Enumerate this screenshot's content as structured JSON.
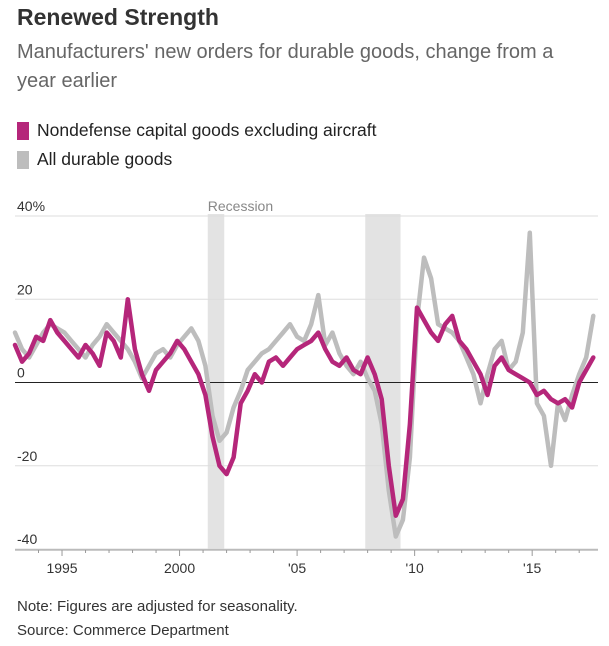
{
  "header": {
    "title": "Renewed Strength",
    "subtitle": "Manufacturers' new orders for durable goods, change from a year earlier"
  },
  "legend": [
    {
      "label": "Nondefense capital goods excluding aircraft",
      "color": "#b5267a"
    },
    {
      "label": "All durable goods",
      "color": "#bdbdbd"
    }
  ],
  "footer": {
    "note": "Note: Figures are adjusted for seasonality.",
    "source": "Source: Commerce Department"
  },
  "chart_data": {
    "type": "line",
    "title": "Renewed Strength",
    "xlim": [
      1993,
      2017.8
    ],
    "ylim": [
      -40,
      40
    ],
    "y_ticks": [
      -40,
      -20,
      0,
      20,
      40
    ],
    "y_tick_labels": [
      "-40",
      "-20",
      "0",
      "20",
      "40%"
    ],
    "x_ticks": [
      1995,
      2000,
      2005,
      2010,
      2015
    ],
    "x_tick_labels": [
      "1995",
      "2000",
      "'05",
      "'10",
      "'15"
    ],
    "grid": "horizontal",
    "recession_label": "Recession",
    "recessions": [
      [
        2001.2,
        2001.9
      ],
      [
        2007.9,
        2009.4
      ]
    ],
    "series": [
      {
        "name": "All durable goods",
        "color": "#bdbdbd",
        "x": [
          1993.0,
          1993.3,
          1993.6,
          1993.9,
          1994.2,
          1994.5,
          1994.8,
          1995.1,
          1995.4,
          1995.7,
          1996.0,
          1996.3,
          1996.6,
          1996.9,
          1997.2,
          1997.5,
          1997.8,
          1998.1,
          1998.4,
          1998.7,
          1999.0,
          1999.3,
          1999.6,
          1999.9,
          2000.2,
          2000.5,
          2000.8,
          2001.1,
          2001.4,
          2001.7,
          2002.0,
          2002.3,
          2002.6,
          2002.9,
          2003.2,
          2003.5,
          2003.8,
          2004.1,
          2004.4,
          2004.7,
          2005.0,
          2005.3,
          2005.6,
          2005.9,
          2006.2,
          2006.5,
          2006.8,
          2007.1,
          2007.4,
          2007.7,
          2008.0,
          2008.3,
          2008.6,
          2008.9,
          2009.2,
          2009.5,
          2009.8,
          2010.1,
          2010.4,
          2010.7,
          2011.0,
          2011.3,
          2011.6,
          2011.9,
          2012.2,
          2012.5,
          2012.8,
          2013.1,
          2013.4,
          2013.7,
          2014.0,
          2014.3,
          2014.6,
          2014.9,
          2015.2,
          2015.5,
          2015.8,
          2016.1,
          2016.4,
          2016.7,
          2017.0,
          2017.3,
          2017.6
        ],
        "y": [
          12,
          8,
          6,
          9,
          12,
          14,
          13,
          12,
          10,
          8,
          6,
          9,
          11,
          14,
          12,
          10,
          8,
          5,
          1,
          4,
          7,
          8,
          6,
          9,
          11,
          13,
          10,
          4,
          -8,
          -14,
          -12,
          -6,
          -2,
          3,
          5,
          7,
          8,
          10,
          12,
          14,
          11,
          10,
          14,
          21,
          9,
          12,
          7,
          4,
          2,
          5,
          1,
          -2,
          -10,
          -26,
          -37,
          -33,
          -18,
          15,
          30,
          25,
          14,
          13,
          12,
          10,
          6,
          2,
          -5,
          2,
          8,
          10,
          3,
          5,
          12,
          36,
          -5,
          -8,
          -20,
          -5,
          -9,
          -3,
          2,
          6,
          16
        ]
      },
      {
        "name": "Nondefense capital goods excluding aircraft",
        "color": "#b5267a",
        "x": [
          1993.0,
          1993.3,
          1993.6,
          1993.9,
          1994.2,
          1994.5,
          1994.8,
          1995.1,
          1995.4,
          1995.7,
          1996.0,
          1996.3,
          1996.6,
          1996.9,
          1997.2,
          1997.5,
          1997.8,
          1998.1,
          1998.4,
          1998.7,
          1999.0,
          1999.3,
          1999.6,
          1999.9,
          2000.2,
          2000.5,
          2000.8,
          2001.1,
          2001.4,
          2001.7,
          2002.0,
          2002.3,
          2002.6,
          2002.9,
          2003.2,
          2003.5,
          2003.8,
          2004.1,
          2004.4,
          2004.7,
          2005.0,
          2005.3,
          2005.6,
          2005.9,
          2006.2,
          2006.5,
          2006.8,
          2007.1,
          2007.4,
          2007.7,
          2008.0,
          2008.3,
          2008.6,
          2008.9,
          2009.2,
          2009.5,
          2009.8,
          2010.1,
          2010.4,
          2010.7,
          2011.0,
          2011.3,
          2011.6,
          2011.9,
          2012.2,
          2012.5,
          2012.8,
          2013.1,
          2013.4,
          2013.7,
          2014.0,
          2014.3,
          2014.6,
          2014.9,
          2015.2,
          2015.5,
          2015.8,
          2016.1,
          2016.4,
          2016.7,
          2017.0,
          2017.3,
          2017.6
        ],
        "y": [
          9,
          5,
          7,
          11,
          10,
          15,
          12,
          10,
          8,
          6,
          9,
          7,
          4,
          12,
          10,
          6,
          20,
          8,
          2,
          -2,
          3,
          5,
          7,
          10,
          8,
          5,
          2,
          -3,
          -13,
          -20,
          -22,
          -18,
          -5,
          -2,
          2,
          0,
          5,
          6,
          4,
          6,
          8,
          9,
          10,
          12,
          8,
          5,
          4,
          6,
          3,
          2,
          6,
          2,
          -4,
          -20,
          -32,
          -28,
          -10,
          18,
          15,
          12,
          10,
          14,
          16,
          10,
          8,
          5,
          2,
          -3,
          4,
          6,
          3,
          2,
          1,
          0,
          -3,
          -2,
          -4,
          -5,
          -4,
          -6,
          0,
          3,
          6
        ]
      }
    ]
  }
}
